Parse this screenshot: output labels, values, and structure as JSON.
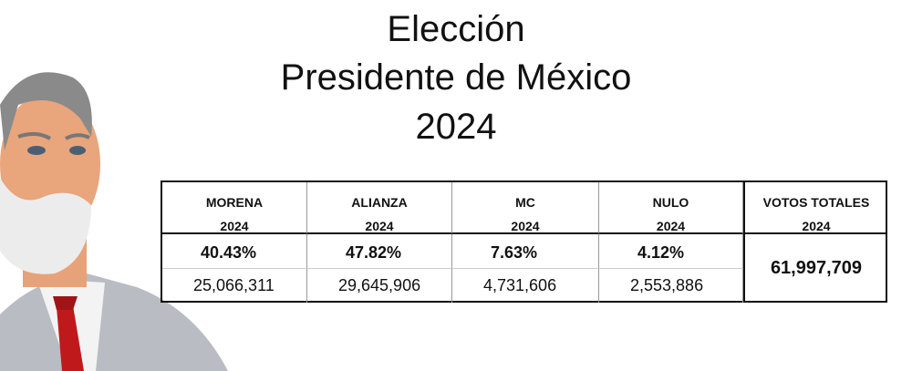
{
  "title": [
    "Elección",
    "Presidente de México",
    "2024"
  ],
  "table": {
    "columns": [
      {
        "name": "MORENA",
        "year": "2024",
        "percent": "40.43%",
        "votes": "25,066,311"
      },
      {
        "name": "ALIANZA",
        "year": "2024",
        "percent": "47.82%",
        "votes": "29,645,906"
      },
      {
        "name": "MC",
        "year": "2024",
        "percent": "7.63%",
        "votes": "4,731,606"
      },
      {
        "name": "NULO",
        "year": "2024",
        "percent": "4.12%",
        "votes": "2,553,886"
      }
    ],
    "total": {
      "name": "VOTOS TOTALES",
      "year": "2024",
      "value": "61,997,709"
    }
  }
}
